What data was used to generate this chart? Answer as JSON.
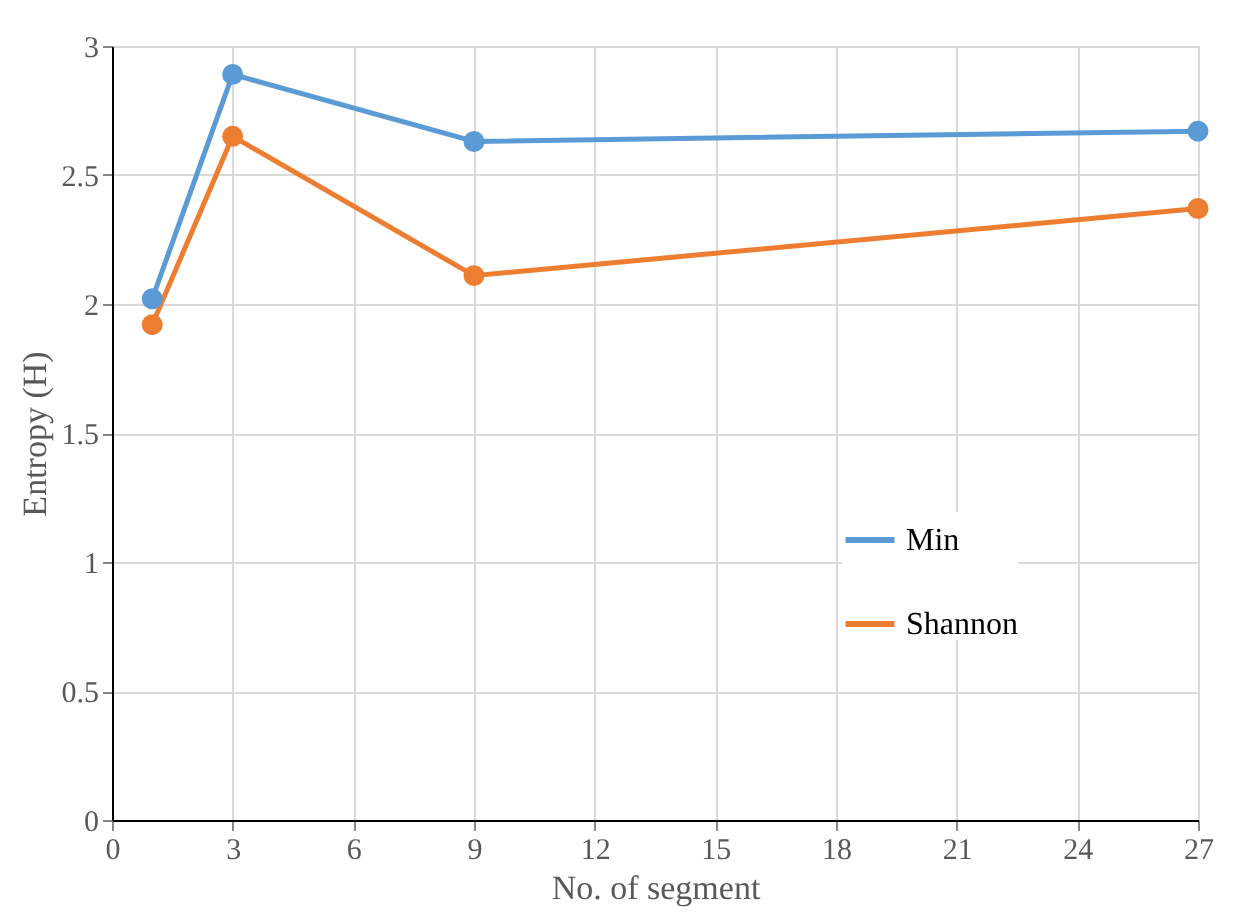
{
  "chart_data": {
    "type": "line",
    "xlabel": "No. of segment",
    "ylabel": "Entropy (H)",
    "x": [
      1,
      3,
      9,
      27
    ],
    "series": [
      {
        "name": "Min",
        "color": "#5b9bd5",
        "values": [
          2.02,
          2.89,
          2.63,
          2.67
        ]
      },
      {
        "name": "Shannon",
        "color": "#ed7d31",
        "values": [
          1.92,
          2.65,
          2.11,
          2.37
        ]
      }
    ],
    "xlim": [
      0,
      27
    ],
    "xticks": [
      0,
      3,
      6,
      9,
      12,
      15,
      18,
      21,
      24,
      27
    ],
    "ylim": [
      0,
      3
    ],
    "yticks": [
      0,
      0.5,
      1,
      1.5,
      2,
      2.5,
      3
    ],
    "grid": true,
    "legend": "bottom right",
    "marker": "circle",
    "line_style": "solid"
  }
}
